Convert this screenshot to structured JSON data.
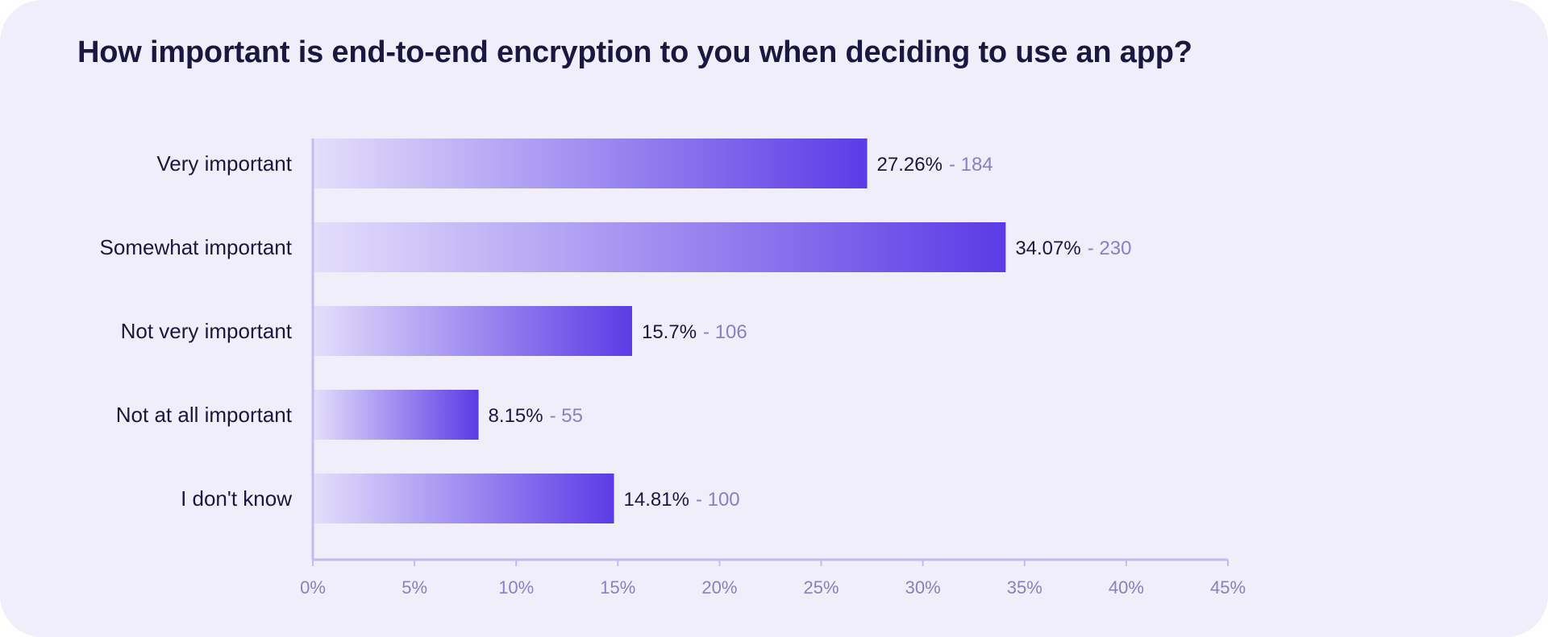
{
  "chart_data": {
    "type": "bar",
    "orientation": "horizontal",
    "title": "How important is end-to-end encryption to you when deciding to use an app?",
    "categories": [
      "Very important",
      "Somewhat important",
      "Not very important",
      "Not at all important",
      "I don't know"
    ],
    "values": [
      27.26,
      34.07,
      15.7,
      8.15,
      14.81
    ],
    "value_labels": [
      "27.26%",
      "34.07%",
      "15.7%",
      "8.15%",
      "14.81%"
    ],
    "count_labels": [
      "- 184",
      "- 230",
      "- 106",
      "- 55",
      "- 100"
    ],
    "counts": [
      184,
      230,
      106,
      55,
      100
    ],
    "xlim": [
      0,
      45
    ],
    "x_ticks": [
      0,
      5,
      10,
      15,
      20,
      25,
      30,
      35,
      40,
      45
    ],
    "x_tick_labels": [
      "0%",
      "5%",
      "10%",
      "15%",
      "20%",
      "25%",
      "30%",
      "35%",
      "40%",
      "45%"
    ],
    "grid": false,
    "legend": "none",
    "colors": {
      "background": "#f1eefc",
      "bar_start": "#e4defb",
      "bar_end": "#5b3be6",
      "axis": "#c3b9f3",
      "text": "#1a1740",
      "muted": "#8a7fc2"
    }
  }
}
